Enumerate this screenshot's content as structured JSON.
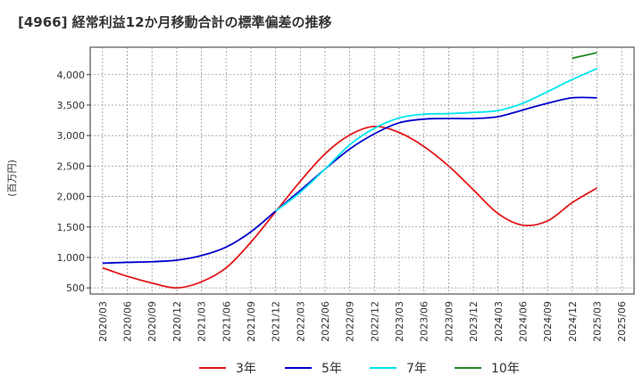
{
  "chart_data": {
    "type": "line",
    "title": "[4966]  経常利益12か月移動合計の標準偏差の推移",
    "xlabel": "",
    "ylabel": "(百万円)",
    "x_ticks": [
      "2020/03",
      "2020/06",
      "2020/09",
      "2020/12",
      "2021/03",
      "2021/06",
      "2021/09",
      "2021/12",
      "2022/03",
      "2022/06",
      "2022/09",
      "2022/12",
      "2023/03",
      "2023/06",
      "2023/09",
      "2023/12",
      "2024/03",
      "2024/06",
      "2024/09",
      "2024/12",
      "2025/03",
      "2025/06"
    ],
    "y_ticks": [
      500,
      1000,
      1500,
      2000,
      2500,
      3000,
      3500,
      4000
    ],
    "ylim": [
      400,
      4450
    ],
    "grid": true,
    "legend_position": "bottom",
    "series": [
      {
        "name": "3年",
        "color": "#e31a1c",
        "points": [
          [
            "2020/03",
            830
          ],
          [
            "2020/06",
            690
          ],
          [
            "2020/09",
            580
          ],
          [
            "2020/12",
            500
          ],
          [
            "2021/03",
            600
          ],
          [
            "2021/06",
            830
          ],
          [
            "2021/09",
            1250
          ],
          [
            "2021/12",
            1750
          ],
          [
            "2022/03",
            2250
          ],
          [
            "2022/06",
            2700
          ],
          [
            "2022/09",
            3010
          ],
          [
            "2022/12",
            3150
          ],
          [
            "2023/03",
            3050
          ],
          [
            "2023/06",
            2820
          ],
          [
            "2023/09",
            2500
          ],
          [
            "2023/12",
            2110
          ],
          [
            "2024/03",
            1720
          ],
          [
            "2024/06",
            1530
          ],
          [
            "2024/09",
            1600
          ],
          [
            "2024/12",
            1900
          ],
          [
            "2025/03",
            2140
          ]
        ]
      },
      {
        "name": "5年",
        "color": "#0000cd",
        "points": [
          [
            "2020/03",
            905
          ],
          [
            "2020/06",
            920
          ],
          [
            "2020/09",
            930
          ],
          [
            "2020/12",
            955
          ],
          [
            "2021/03",
            1030
          ],
          [
            "2021/06",
            1170
          ],
          [
            "2021/09",
            1420
          ],
          [
            "2021/12",
            1760
          ],
          [
            "2022/03",
            2100
          ],
          [
            "2022/06",
            2450
          ],
          [
            "2022/09",
            2780
          ],
          [
            "2022/12",
            3030
          ],
          [
            "2023/03",
            3210
          ],
          [
            "2023/06",
            3270
          ],
          [
            "2023/09",
            3280
          ],
          [
            "2023/12",
            3280
          ],
          [
            "2024/03",
            3310
          ],
          [
            "2024/06",
            3420
          ],
          [
            "2024/09",
            3530
          ],
          [
            "2024/12",
            3620
          ],
          [
            "2025/03",
            3620
          ]
        ]
      },
      {
        "name": "7年",
        "color": "#00e5ee",
        "points": [
          [
            "2021/12",
            1760
          ],
          [
            "2022/03",
            2070
          ],
          [
            "2022/06",
            2450
          ],
          [
            "2022/09",
            2850
          ],
          [
            "2022/12",
            3120
          ],
          [
            "2023/03",
            3290
          ],
          [
            "2023/06",
            3350
          ],
          [
            "2023/09",
            3360
          ],
          [
            "2023/12",
            3380
          ],
          [
            "2024/03",
            3410
          ],
          [
            "2024/06",
            3530
          ],
          [
            "2024/09",
            3720
          ],
          [
            "2024/12",
            3920
          ],
          [
            "2025/03",
            4100
          ]
        ]
      },
      {
        "name": "10年",
        "color": "#228b22",
        "points": [
          [
            "2024/12",
            4270
          ],
          [
            "2025/03",
            4360
          ]
        ]
      }
    ]
  }
}
